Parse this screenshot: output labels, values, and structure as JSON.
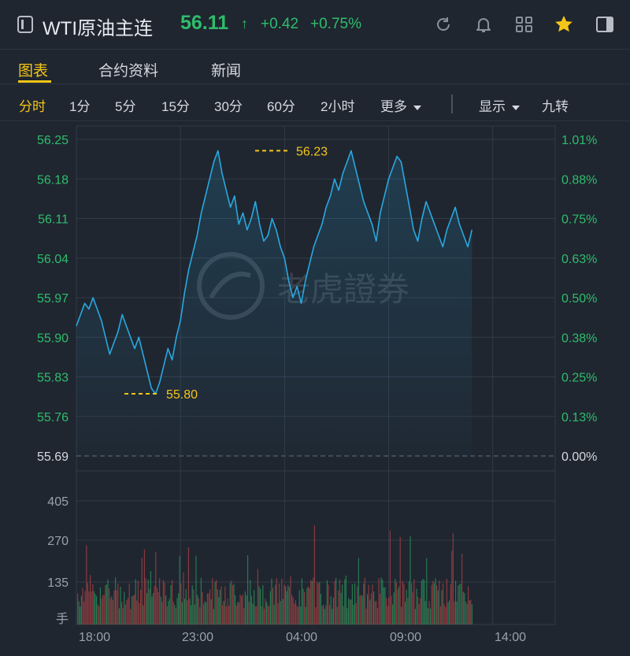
{
  "header": {
    "title": "WTI原油主连",
    "price": "56.11",
    "arrow": "↑",
    "change": "+0.42",
    "change_pct": "+0.75%",
    "icons": [
      "refresh-icon",
      "bell-icon",
      "grid-icon",
      "star-icon",
      "panel-icon"
    ]
  },
  "tabs": [
    {
      "label": "图表",
      "active": true
    },
    {
      "label": "合约资料",
      "active": false
    },
    {
      "label": "新闻",
      "active": false
    }
  ],
  "periods": {
    "items": [
      "分时",
      "1分",
      "5分",
      "15分",
      "30分",
      "60分",
      "2小时"
    ],
    "more": "更多",
    "display": "显示",
    "adjust": "九转"
  },
  "colors": {
    "up": "#2ebd6b",
    "accent": "#f5c518",
    "line": "#29a8e0",
    "down": "#e04a4a"
  },
  "chart_data": {
    "type": "line",
    "y_left_ticks": [
      "56.25",
      "56.18",
      "56.11",
      "56.04",
      "55.97",
      "55.90",
      "55.83",
      "55.76",
      "55.69"
    ],
    "y_right_ticks": [
      "1.01%",
      "0.88%",
      "0.75%",
      "0.63%",
      "0.50%",
      "0.38%",
      "0.25%",
      "0.13%",
      "0.00%"
    ],
    "ylim": [
      55.69,
      56.25
    ],
    "prev_close": 55.69,
    "x_ticks": [
      "18:00",
      "23:00",
      "04:00",
      "09:00",
      "14:00"
    ],
    "high_label": "56.23",
    "low_label": "55.80",
    "watermark": "老虎證券",
    "price_series": {
      "x_hours": [
        0,
        0.2,
        0.4,
        0.6,
        0.8,
        1.0,
        1.2,
        1.4,
        1.6,
        1.8,
        2.0,
        2.2,
        2.4,
        2.6,
        2.8,
        3.0,
        3.2,
        3.4,
        3.6,
        3.8,
        4.0,
        4.2,
        4.4,
        4.6,
        4.8,
        5.0,
        5.2,
        5.4,
        5.6,
        5.8,
        6.0,
        6.2,
        6.4,
        6.6,
        6.8,
        7.0,
        7.2,
        7.4,
        7.6,
        7.8,
        8.0,
        8.2,
        8.4,
        8.6,
        8.8,
        9.0,
        9.2,
        9.4,
        9.6,
        9.8,
        10.0,
        10.2,
        10.4,
        10.6,
        10.8,
        11.0,
        11.2,
        11.4,
        11.6,
        11.8,
        12.0,
        12.2,
        12.4,
        12.6,
        12.8,
        13.0,
        13.2,
        13.4,
        13.6,
        13.8,
        14.0,
        14.2,
        14.4,
        14.6,
        14.8,
        15.0,
        15.2,
        15.4,
        15.6,
        15.8,
        16.0,
        16.2,
        16.4,
        16.6,
        16.8,
        17.0,
        17.2,
        17.4,
        17.6,
        17.8,
        18.0,
        18.2,
        18.4,
        18.6,
        18.8,
        19.0
      ],
      "values": [
        55.92,
        55.94,
        55.96,
        55.95,
        55.97,
        55.95,
        55.93,
        55.9,
        55.87,
        55.89,
        55.91,
        55.94,
        55.92,
        55.9,
        55.88,
        55.9,
        55.87,
        55.84,
        55.81,
        55.8,
        55.82,
        55.85,
        55.88,
        55.86,
        55.9,
        55.93,
        55.98,
        56.02,
        56.05,
        56.08,
        56.12,
        56.15,
        56.18,
        56.21,
        56.23,
        56.19,
        56.16,
        56.13,
        56.15,
        56.1,
        56.12,
        56.09,
        56.11,
        56.14,
        56.1,
        56.07,
        56.08,
        56.11,
        56.09,
        56.06,
        56.04,
        56.0,
        55.97,
        55.99,
        55.96,
        56.0,
        56.03,
        56.06,
        56.08,
        56.1,
        56.13,
        56.15,
        56.18,
        56.16,
        56.19,
        56.21,
        56.23,
        56.2,
        56.17,
        56.14,
        56.12,
        56.1,
        56.07,
        56.12,
        56.15,
        56.18,
        56.2,
        56.22,
        56.21,
        56.17,
        56.13,
        56.09,
        56.07,
        56.11,
        56.14,
        56.12,
        56.1,
        56.08,
        56.06,
        56.09,
        56.11,
        56.13,
        56.1,
        56.08,
        56.06,
        56.09
      ]
    },
    "volume": {
      "y_ticks": [
        "405",
        "270",
        "135",
        "手"
      ],
      "ylim": [
        0,
        480
      ]
    }
  }
}
